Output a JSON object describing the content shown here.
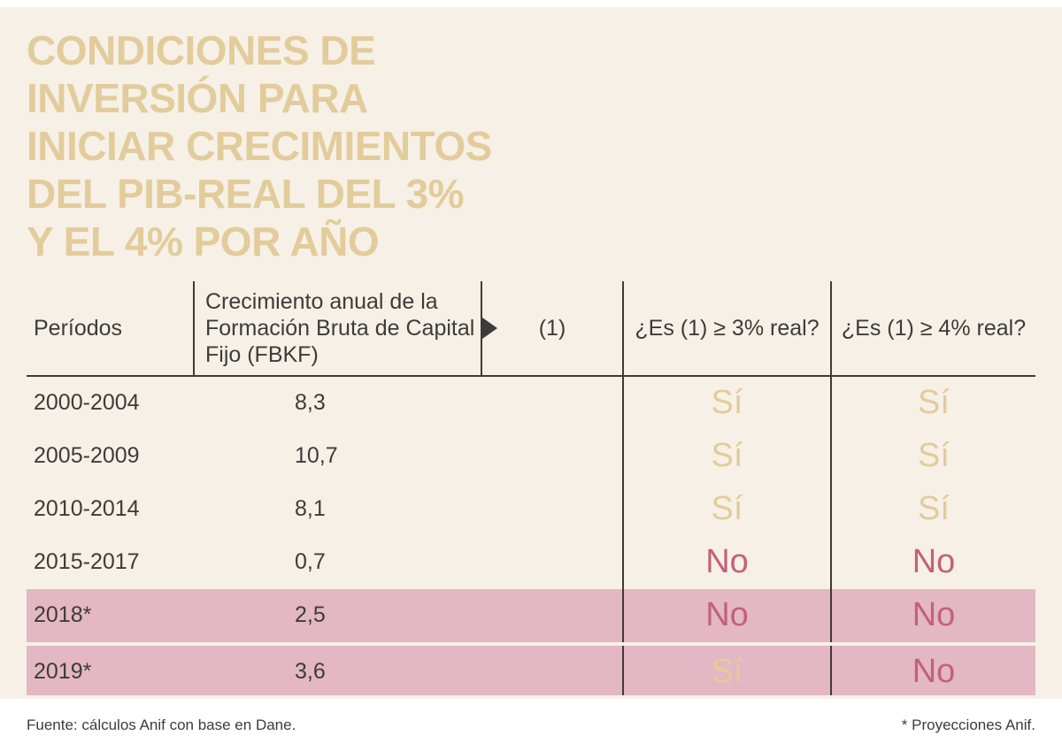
{
  "colors": {
    "background": "#ffffff",
    "panel": "#f7f0e6",
    "title": "#e2cc9b",
    "yes": "#e2cc9b",
    "no": "#c2617b",
    "highlight": "#e3b7c3",
    "text": "#3c3c3c"
  },
  "title": "CONDICIONES DE\nINVERSIÓN PARA\nINICIAR CRECIMIENTOS\nDEL PIB-REAL DEL 3%\nY EL 4% POR AÑO",
  "chart_data": {
    "type": "table",
    "columns": [
      "Períodos",
      "Crecimiento anual de la Formación Bruta de Capital Fijo (FBKF)",
      "(1)",
      "¿Es (1) ≥ 3% real?",
      "¿Es (1) ≥ 4% real?"
    ],
    "rows": [
      {
        "periodo": "2000-2004",
        "fbkf": "8,3",
        "ge3": "Sí",
        "ge4": "Sí",
        "highlight": false
      },
      {
        "periodo": "2005-2009",
        "fbkf": "10,7",
        "ge3": "Sí",
        "ge4": "Sí",
        "highlight": false
      },
      {
        "periodo": "2010-2014",
        "fbkf": "8,1",
        "ge3": "Sí",
        "ge4": "Sí",
        "highlight": false
      },
      {
        "periodo": "2015-2017",
        "fbkf": "0,7",
        "ge3": "No",
        "ge4": "No",
        "highlight": false
      },
      {
        "periodo": "2018*",
        "fbkf": "2,5",
        "ge3": "No",
        "ge4": "No",
        "highlight": true
      },
      {
        "periodo": "2019*",
        "fbkf": "3,6",
        "ge3": "Sí",
        "ge4": "No",
        "highlight": true
      }
    ]
  },
  "footer": {
    "source": "Fuente: cálculos Anif con base en Dane.",
    "note": "* Proyecciones Anif."
  }
}
